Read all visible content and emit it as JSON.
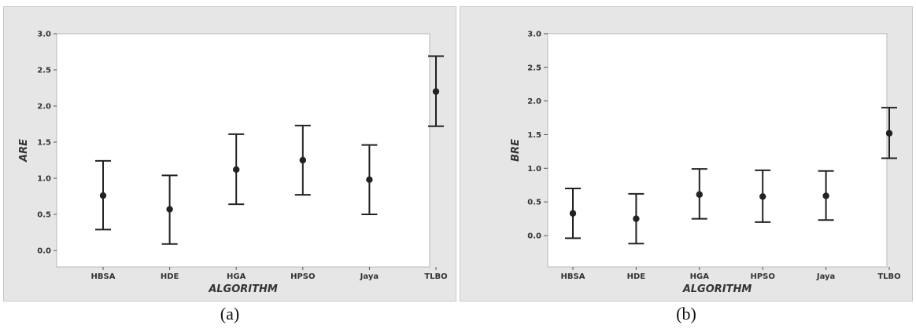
{
  "chart_data": [
    {
      "type": "errorbar",
      "panel": "a",
      "caption": "(a)",
      "xlabel": "ALGORITHM",
      "ylabel": "ARE",
      "categories": [
        "HBSA",
        "HDE",
        "HGA",
        "HPSO",
        "Jaya",
        "TLBO"
      ],
      "values": [
        0.76,
        0.57,
        1.12,
        1.25,
        0.98,
        2.2
      ],
      "lower": [
        0.29,
        0.09,
        0.64,
        0.77,
        0.5,
        1.72
      ],
      "upper": [
        1.24,
        1.04,
        1.61,
        1.73,
        1.46,
        2.69
      ],
      "ylim": [
        0.0,
        3.0
      ],
      "yticks": [
        "0.0",
        "0.5",
        "1.0",
        "1.5",
        "2.0",
        "2.5",
        "3.0"
      ],
      "grid": false
    },
    {
      "type": "errorbar",
      "panel": "b",
      "caption": "(b)",
      "xlabel": "ALGORITHM",
      "ylabel": "BRE",
      "categories": [
        "HBSA",
        "HDE",
        "HGA",
        "HPSO",
        "Jaya",
        "TLBO"
      ],
      "values": [
        0.33,
        0.25,
        0.61,
        0.58,
        0.59,
        1.52
      ],
      "lower": [
        -0.04,
        -0.12,
        0.25,
        0.2,
        0.23,
        1.15
      ],
      "upper": [
        0.7,
        0.62,
        0.99,
        0.97,
        0.96,
        1.9
      ],
      "ylim": [
        0.0,
        3.0
      ],
      "yticks": [
        "0.0",
        "0.5",
        "1.0",
        "1.5",
        "2.0",
        "2.5",
        "3.0"
      ],
      "grid": false
    }
  ],
  "colors": {
    "panel_bg": "#e6e6e6",
    "plot_bg": "#ffffff",
    "marker": "#222222"
  }
}
